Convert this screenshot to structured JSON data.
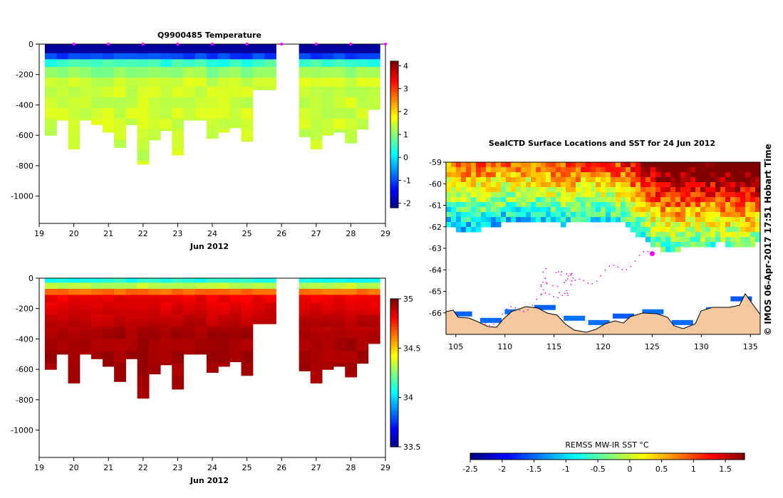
{
  "chart_data": [
    {
      "type": "heatmap",
      "id": "temperature",
      "title": "Q9900485  Temperature",
      "xlabel": "Jun 2012",
      "ylabel": "",
      "x_ticks": [
        "19",
        "20",
        "21",
        "22",
        "23",
        "24",
        "25",
        "26",
        "27",
        "28",
        "29"
      ],
      "xlim": [
        19,
        29
      ],
      "y_ticks": [
        "0",
        "-200",
        "-400",
        "-600",
        "-800",
        "-1000"
      ],
      "ylim": [
        -1180,
        0
      ],
      "colorbar": {
        "min": -2.2,
        "max": 4.2,
        "ticks": [
          "4",
          "3",
          "2",
          "1",
          "0",
          "-1",
          "-2"
        ]
      },
      "profiles": [
        {
          "day": 19.33,
          "max_depth": 600
        },
        {
          "day": 19.67,
          "max_depth": 500
        },
        {
          "day": 20.0,
          "max_depth": 690
        },
        {
          "day": 20.33,
          "max_depth": 500
        },
        {
          "day": 20.67,
          "max_depth": 530
        },
        {
          "day": 21.0,
          "max_depth": 580
        },
        {
          "day": 21.33,
          "max_depth": 680
        },
        {
          "day": 21.67,
          "max_depth": 530
        },
        {
          "day": 22.0,
          "max_depth": 790
        },
        {
          "day": 22.33,
          "max_depth": 630
        },
        {
          "day": 22.67,
          "max_depth": 570
        },
        {
          "day": 23.0,
          "max_depth": 730
        },
        {
          "day": 23.33,
          "max_depth": 500
        },
        {
          "day": 23.67,
          "max_depth": 500
        },
        {
          "day": 24.0,
          "max_depth": 620
        },
        {
          "day": 24.33,
          "max_depth": 580
        },
        {
          "day": 24.67,
          "max_depth": 550
        },
        {
          "day": 25.0,
          "max_depth": 640
        },
        {
          "day": 25.33,
          "max_depth": 300
        },
        {
          "day": 25.67,
          "max_depth": 300
        },
        {
          "day": 26.67,
          "max_depth": 610
        },
        {
          "day": 27.0,
          "max_depth": 690
        },
        {
          "day": 27.33,
          "max_depth": 600
        },
        {
          "day": 27.67,
          "max_depth": 580
        },
        {
          "day": 28.0,
          "max_depth": 650
        },
        {
          "day": 28.33,
          "max_depth": 560
        },
        {
          "day": 28.67,
          "max_depth": 430
        }
      ],
      "markers_days": [
        20,
        21,
        22,
        23,
        24,
        25,
        26,
        27,
        28,
        29
      ]
    },
    {
      "type": "heatmap",
      "id": "salinity",
      "title": "",
      "xlabel": "Jun 2012",
      "x_ticks": [
        "19",
        "20",
        "21",
        "22",
        "23",
        "24",
        "25",
        "26",
        "27",
        "28",
        "29"
      ],
      "xlim": [
        19,
        29
      ],
      "y_ticks": [
        "0",
        "-200",
        "-400",
        "-600",
        "-800",
        "-1000"
      ],
      "ylim": [
        -1180,
        0
      ],
      "colorbar": {
        "min": 33.5,
        "max": 35,
        "ticks": [
          "35",
          "34.5",
          "34",
          "33.5"
        ]
      }
    },
    {
      "type": "heatmap",
      "id": "sst-map",
      "title": "SealCTD Surface Locations and SST for 24 Jun 2012",
      "x_ticks": [
        "105",
        "110",
        "115",
        "120",
        "125",
        "130",
        "135"
      ],
      "xlim": [
        104,
        136
      ],
      "y_ticks": [
        "-59",
        "-60",
        "-61",
        "-62",
        "-63",
        "-64",
        "-65",
        "-66"
      ],
      "ylim": [
        -67,
        -59
      ],
      "colorbar": {
        "label": "REMSS MW-IR SST °C",
        "min": -2.5,
        "max": 1.8,
        "ticks": [
          "-2.5",
          "-2",
          "-1.5",
          "-1",
          "-0.5",
          "0",
          "0.5",
          "1",
          "1.5"
        ]
      },
      "track_end": {
        "lon": 125,
        "lat": -63.25
      }
    }
  ],
  "stamp": "© IMOS 06-Apr-2017 17:51 Hobart Time"
}
